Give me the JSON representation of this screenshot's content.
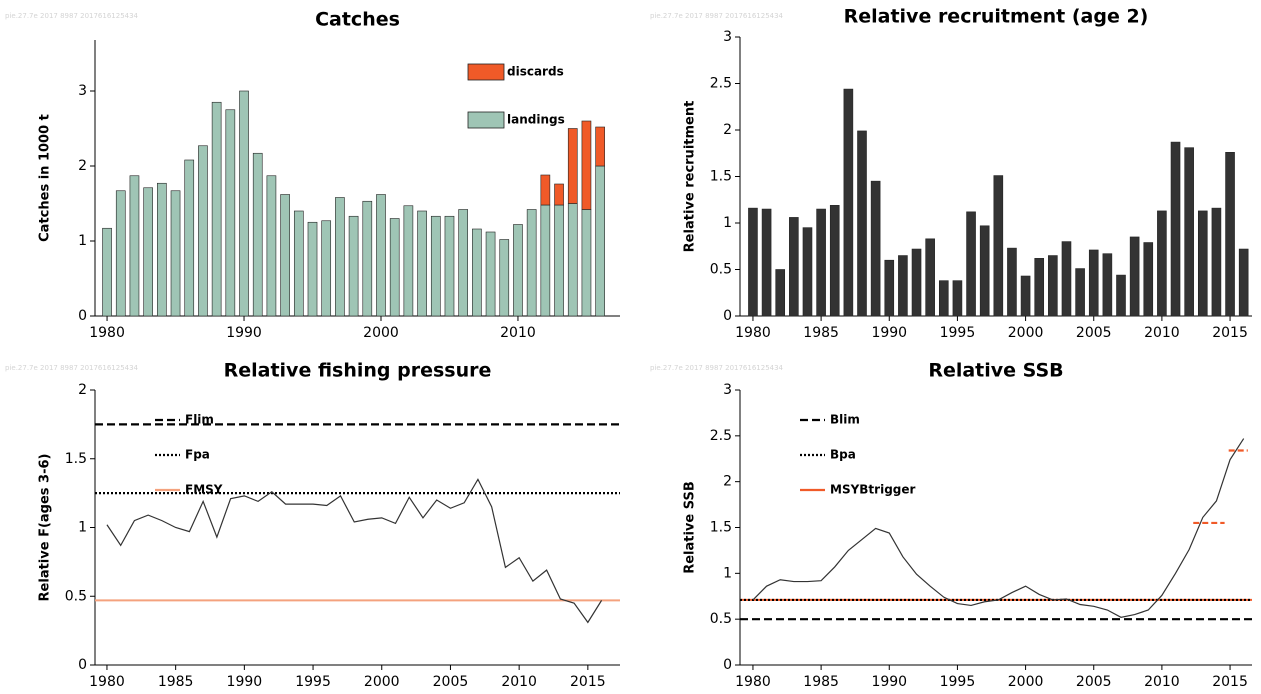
{
  "chart_data": [
    {
      "type": "bar",
      "title": "Catches",
      "ylabel": "Catches in 1000 t",
      "watermark": "pie.27.7e  2017  8987  2017616125434",
      "x": [
        1980,
        1981,
        1982,
        1983,
        1984,
        1985,
        1986,
        1987,
        1988,
        1989,
        1990,
        1991,
        1992,
        1993,
        1994,
        1995,
        1996,
        1997,
        1998,
        1999,
        2000,
        2001,
        2002,
        2003,
        2004,
        2005,
        2006,
        2007,
        2008,
        2009,
        2010,
        2011,
        2012,
        2013,
        2014,
        2015,
        2016
      ],
      "xlim": [
        1979.12,
        2017.45
      ],
      "xticks": [
        1980,
        1990,
        2000,
        2010
      ],
      "ylim": [
        0,
        3.68
      ],
      "yticks": [
        0,
        1,
        2,
        3
      ],
      "stacked": true,
      "legend": "top-right",
      "series": [
        {
          "name": "landings",
          "color": "#9fc5b5",
          "values": [
            1.17,
            1.67,
            1.87,
            1.71,
            1.77,
            1.67,
            2.08,
            2.27,
            2.85,
            2.75,
            3.0,
            2.17,
            1.87,
            1.62,
            1.4,
            1.25,
            1.27,
            1.58,
            1.33,
            1.53,
            1.62,
            1.3,
            1.47,
            1.4,
            1.33,
            1.33,
            1.42,
            1.16,
            1.12,
            1.02,
            1.22,
            1.42,
            1.48,
            1.48,
            1.5,
            1.42,
            2.0
          ]
        },
        {
          "name": "discards",
          "color": "#f05a28",
          "values": [
            null,
            null,
            null,
            null,
            null,
            null,
            null,
            null,
            null,
            null,
            null,
            null,
            null,
            null,
            null,
            null,
            null,
            null,
            null,
            null,
            null,
            null,
            null,
            null,
            null,
            null,
            null,
            null,
            null,
            null,
            null,
            null,
            0.4,
            0.28,
            1.0,
            1.18,
            0.52
          ]
        }
      ]
    },
    {
      "type": "bar",
      "title": "Relative recruitment (age 2)",
      "ylabel": "Relative recruitment",
      "watermark": "pie.27.7e  2017  8987  2017616125434",
      "x": [
        1980,
        1981,
        1982,
        1983,
        1984,
        1985,
        1986,
        1987,
        1988,
        1989,
        1990,
        1991,
        1992,
        1993,
        1994,
        1995,
        1996,
        1997,
        1998,
        1999,
        2000,
        2001,
        2002,
        2003,
        2004,
        2005,
        2006,
        2007,
        2008,
        2009,
        2010,
        2011,
        2012,
        2013,
        2014,
        2015,
        2016
      ],
      "xlim": [
        1979.05,
        2016.61
      ],
      "xticks": [
        1980,
        1985,
        1990,
        1995,
        2000,
        2005,
        2010,
        2015
      ],
      "ylim": [
        0,
        3
      ],
      "yticks": [
        0,
        0.5,
        1,
        1.5,
        2,
        2.5,
        3
      ],
      "series": [
        {
          "color": "#333333",
          "values": [
            1.16,
            1.15,
            0.5,
            1.06,
            0.95,
            1.15,
            1.19,
            2.44,
            1.99,
            1.45,
            0.6,
            0.65,
            0.72,
            0.83,
            0.38,
            0.38,
            1.12,
            0.97,
            1.51,
            0.73,
            0.43,
            0.62,
            0.65,
            0.8,
            0.51,
            0.71,
            0.67,
            0.44,
            0.85,
            0.79,
            1.13,
            1.87,
            1.81,
            1.13,
            1.16,
            1.76,
            0.72
          ]
        }
      ]
    },
    {
      "type": "line",
      "title": "Relative fishing pressure",
      "ylabel": "Relative F(ages 3-6)",
      "watermark": "pie.27.7e  2017  8987  2017616125434",
      "x": [
        1980,
        1981,
        1982,
        1983,
        1984,
        1985,
        1986,
        1987,
        1988,
        1989,
        1990,
        1991,
        1992,
        1993,
        1994,
        1995,
        1996,
        1997,
        1998,
        1999,
        2000,
        2001,
        2002,
        2003,
        2004,
        2005,
        2006,
        2007,
        2008,
        2009,
        2010,
        2011,
        2012,
        2013,
        2014,
        2015,
        2016
      ],
      "xlim": [
        1979.13,
        2017.34
      ],
      "xticks": [
        1980,
        1985,
        1990,
        1995,
        2000,
        2005,
        2010,
        2015
      ],
      "ylim": [
        0,
        2
      ],
      "yticks": [
        0,
        0.5,
        1,
        1.5,
        2
      ],
      "legend": "top-left",
      "series": [
        {
          "color": "#333333",
          "values": [
            1.02,
            0.87,
            1.05,
            1.09,
            1.05,
            1.0,
            0.97,
            1.19,
            0.93,
            1.21,
            1.23,
            1.19,
            1.26,
            1.17,
            1.17,
            1.17,
            1.16,
            1.23,
            1.04,
            1.06,
            1.07,
            1.03,
            1.22,
            1.07,
            1.2,
            1.14,
            1.18,
            1.35,
            1.15,
            0.71,
            0.78,
            0.61,
            0.69,
            0.48,
            0.45,
            0.31,
            0.47
          ]
        }
      ],
      "ref_lines": [
        {
          "name": "Flim",
          "value": 1.75,
          "color": "#000000",
          "style": "dashed"
        },
        {
          "name": "Fpa",
          "value": 1.25,
          "color": "#000000",
          "style": "dotted"
        },
        {
          "name": "FMSY",
          "value": 0.47,
          "color": "#f4a27e",
          "style": "solid"
        }
      ]
    },
    {
      "type": "line",
      "title": "Relative SSB",
      "ylabel": "Relative SSB",
      "watermark": "pie.27.7e  2017  8987  2017616125434",
      "x": [
        1980,
        1981,
        1982,
        1983,
        1984,
        1985,
        1986,
        1987,
        1988,
        1989,
        1990,
        1991,
        1992,
        1993,
        1994,
        1995,
        1996,
        1997,
        1998,
        1999,
        2000,
        2001,
        2002,
        2003,
        2004,
        2005,
        2006,
        2007,
        2008,
        2009,
        2010,
        2011,
        2012,
        2013,
        2014,
        2015,
        2016
      ],
      "xlim": [
        1979.05,
        2016.61
      ],
      "xticks": [
        1980,
        1985,
        1990,
        1995,
        2000,
        2005,
        2010,
        2015
      ],
      "ylim": [
        0,
        3
      ],
      "yticks": [
        0,
        0.5,
        1,
        1.5,
        2,
        2.5,
        3
      ],
      "legend": "top-left",
      "series": [
        {
          "color": "#333333",
          "values": [
            0.71,
            0.86,
            0.93,
            0.91,
            0.91,
            0.92,
            1.07,
            1.25,
            1.37,
            1.49,
            1.44,
            1.18,
            0.99,
            0.86,
            0.74,
            0.67,
            0.65,
            0.69,
            0.71,
            0.79,
            0.86,
            0.77,
            0.71,
            0.72,
            0.66,
            0.64,
            0.6,
            0.52,
            0.55,
            0.6,
            0.76,
            1.0,
            1.26,
            1.61,
            1.79,
            2.24,
            2.47
          ]
        }
      ],
      "ref_lines": [
        {
          "name": "Blim",
          "value": 0.5,
          "color": "#000000",
          "style": "dashed"
        },
        {
          "name": "Bpa",
          "value": 0.71,
          "color": "#000000",
          "style": "dotted"
        },
        {
          "name": "MSYBtrigger",
          "value": 0.71,
          "color": "#f05a28",
          "style": "solid"
        }
      ],
      "segments": [
        {
          "x": [
            2012.3,
            2014.6
          ],
          "value": 1.55,
          "color": "#f05a28"
        },
        {
          "x": [
            2014.9,
            2016.3
          ],
          "value": 2.34,
          "color": "#f05a28"
        }
      ]
    }
  ]
}
